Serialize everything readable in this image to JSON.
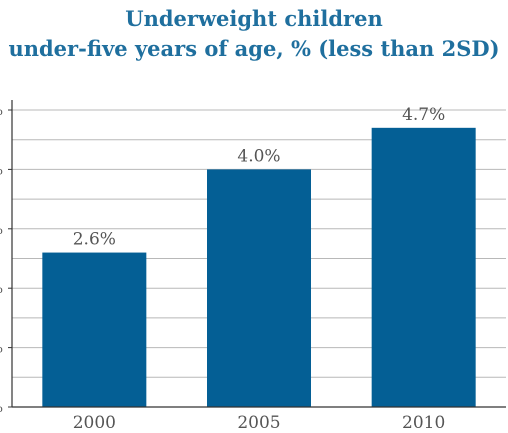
{
  "title_lines": [
    "Underweight children",
    "under-five years of age, % (less than 2SD)"
  ],
  "colors": {
    "title": "#1f6f9e",
    "bar": "#045f95",
    "grid": "#b8b8b8",
    "axis": "#333333",
    "text": "#555555"
  },
  "chart_data": {
    "type": "bar",
    "title": "Underweight children under-five years of age, % (less than 2SD)",
    "categories": [
      "2000",
      "2005",
      "2010"
    ],
    "values": [
      2.6,
      4.0,
      4.7
    ],
    "value_labels": [
      "2.6%",
      "4.0%",
      "4.7%"
    ],
    "ylim": [
      0,
      5
    ],
    "yticks": [
      0,
      1,
      2,
      3,
      4,
      5
    ],
    "ytick_labels": [
      "%",
      "%",
      "%",
      "%",
      "%",
      "%"
    ],
    "minor_gridlines": true,
    "grid": true,
    "legend": "none",
    "xlabel": "",
    "ylabel": ""
  }
}
